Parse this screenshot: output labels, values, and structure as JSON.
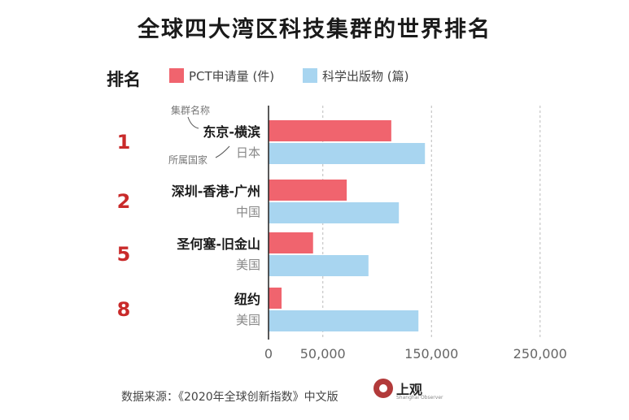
{
  "chart_data": {
    "type": "bar",
    "orientation": "horizontal",
    "title": "全球四大湾区科技集群的世界排名",
    "rank_header": "排名",
    "categories": [
      {
        "rank": "1",
        "name": "东京-横滨",
        "country": "日本"
      },
      {
        "rank": "2",
        "name": "深圳-香港-广州",
        "country": "中国"
      },
      {
        "rank": "5",
        "name": "圣何塞-旧金山",
        "country": "美国"
      },
      {
        "rank": "8",
        "name": "纽约",
        "country": "美国"
      }
    ],
    "series": [
      {
        "name": "PCT申请量 (件)",
        "color": "#f0646e",
        "values": [
          113000,
          72000,
          41000,
          12000
        ]
      },
      {
        "name": "科学出版物 (篇)",
        "color": "#a8d5f0",
        "values": [
          144000,
          120000,
          92000,
          138000
        ]
      }
    ],
    "x_ticks": [
      "0",
      "50,000",
      "150,000",
      "250,000"
    ],
    "xlim": [
      0,
      250000
    ],
    "grid": "vertical dashed",
    "legend_position": "top",
    "annotations": {
      "cluster_name": "集群名称",
      "country": "所属国家"
    },
    "source": "数据来源：《2020年全球创新指数》中文版",
    "logo": {
      "name": "上观",
      "subtitle": "Shanghai Observer"
    }
  }
}
